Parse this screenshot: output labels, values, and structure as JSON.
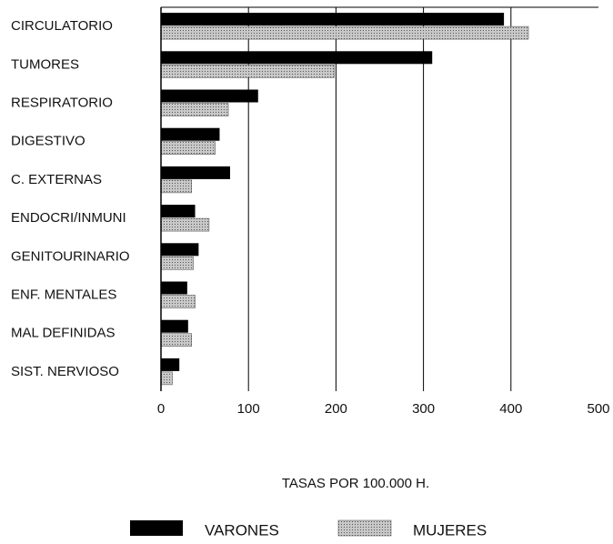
{
  "chart_data": {
    "type": "hbar",
    "categories": [
      "CIRCULATORIO",
      "TUMORES",
      "RESPIRATORIO",
      "DIGESTIVO",
      "C. EXTERNAS",
      "ENDOCRI/INMUNI",
      "GENITOURINARIO",
      "ENF. MENTALES",
      "MAL DEFINIDAS",
      "SIST. NERVIOSO"
    ],
    "series": [
      {
        "name": "VARONES",
        "color": "#000000",
        "values": [
          392,
          310,
          111,
          67,
          79,
          39,
          43,
          30,
          31,
          21
        ]
      },
      {
        "name": "MUJERES",
        "color": "#c8c8c8",
        "values": [
          420,
          198,
          77,
          62,
          35,
          55,
          37,
          39,
          35,
          13
        ]
      }
    ],
    "xlabel": "TASAS POR 100.000 H.",
    "xlim": [
      0,
      500
    ],
    "xticks": [
      0,
      100,
      200,
      300,
      400,
      500
    ],
    "grid": true
  }
}
